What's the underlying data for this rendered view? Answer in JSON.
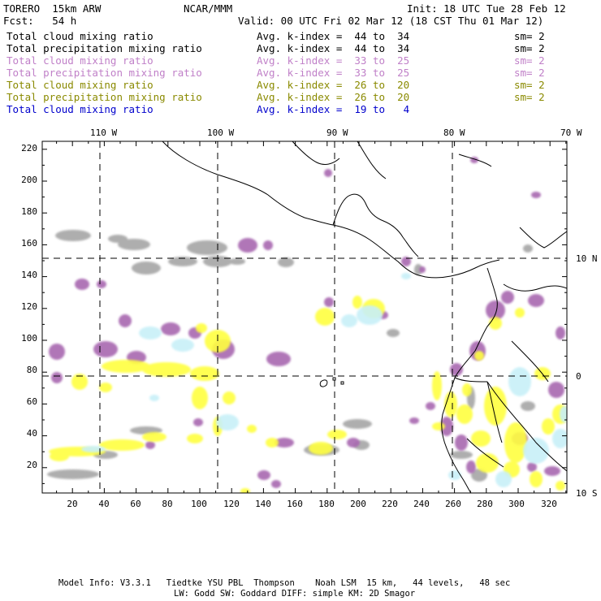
{
  "header": {
    "model": "TORERO  15km ARW",
    "center": "NCAR/MMM",
    "init": "Init: 18 UTC Tue 28 Feb 12",
    "fcst": "Fcst:   54 h",
    "valid": "Valid: 00 UTC Fri 02 Mar 12 (18 CST Thu 01 Mar 12)"
  },
  "legend": [
    {
      "field": "Total cloud mixing ratio",
      "kindex": "Avg. k-index =  44 to  34",
      "sm": "sm= 2",
      "color": "#000000"
    },
    {
      "field": "Total precipitation mixing ratio",
      "kindex": "Avg. k-index =  44 to  34",
      "sm": "sm= 2",
      "color": "#000000"
    },
    {
      "field": "Total cloud mixing ratio",
      "kindex": "Avg. k-index =  33 to  25",
      "sm": "sm= 2",
      "color": "#c080c8"
    },
    {
      "field": "Total precipitation mixing ratio",
      "kindex": "Avg. k-index =  33 to  25",
      "sm": "sm= 2",
      "color": "#c080c8"
    },
    {
      "field": "Total cloud mixing ratio",
      "kindex": "Avg. k-index =  26 to  20",
      "sm": "sm= 2",
      "color": "#8a8a00"
    },
    {
      "field": "Total precipitation mixing ratio",
      "kindex": "Avg. k-index =  26 to  20",
      "sm": "sm= 2",
      "color": "#8a8a00"
    },
    {
      "field": "Total cloud mixing ratio",
      "kindex": "Avg. k-index =  19 to   4",
      "sm": "",
      "color": "#0000cc"
    }
  ],
  "axes": {
    "top_lon_labels": [
      "110 W",
      "100 W",
      "90 W",
      "80 W",
      "70 W"
    ],
    "y_ticks": [
      "220",
      "200",
      "180",
      "160",
      "140",
      "120",
      "100",
      "80",
      "60",
      "40",
      "20"
    ],
    "x_ticks": [
      "20",
      "40",
      "60",
      "80",
      "100",
      "120",
      "140",
      "160",
      "180",
      "200",
      "220",
      "240",
      "260",
      "280",
      "300",
      "320"
    ],
    "right_lat_labels": [
      "10 N",
      "0",
      "10 S"
    ]
  },
  "footer": {
    "line1": "Model Info: V3.3.1   Tiedtke YSU PBL  Thompson    Noah LSM  15 km,   44 levels,   48 sec",
    "line2": "LW: Godd SW: Goddard DIFF: simple KM: 2D Smagor"
  },
  "colors": {
    "gray": "#a0a0a0",
    "purple": "#a868b0",
    "yellow": "#ffff40",
    "cyan": "#c8f0f8"
  }
}
